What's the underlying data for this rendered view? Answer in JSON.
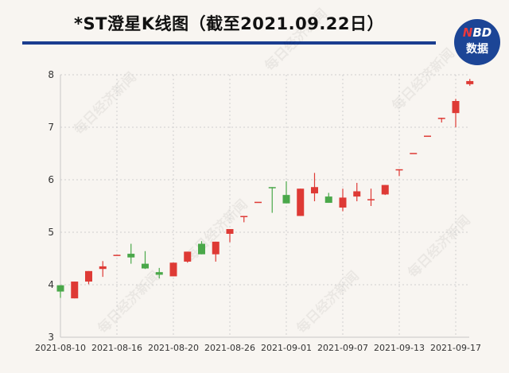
{
  "header": {
    "title": "*ST澄星K线图（截至2021.09.22日）",
    "logo_line1_accent": "N",
    "logo_line1": "BD",
    "logo_line2": "数据",
    "watermark": "每日经济新闻"
  },
  "colors": {
    "up": "#de3a35",
    "down": "#4aa84a",
    "title_rule": "#1a3d8f",
    "logo_bg": "#1c4596"
  },
  "chart_data": {
    "type": "candlestick",
    "title": "*ST澄星K线图（截至2021.09.22日）",
    "ylim": [
      3,
      8
    ],
    "yticks": [
      "3",
      "4",
      "5",
      "6",
      "7",
      "8"
    ],
    "grid": true,
    "xtick_labels": [
      "2021-08-10",
      "2021-08-16",
      "2021-08-20",
      "2021-08-26",
      "2021-09-01",
      "2021-09-07",
      "2021-09-13",
      "2021-09-17"
    ],
    "dates": [
      "2021-08-10",
      "2021-08-11",
      "2021-08-12",
      "2021-08-13",
      "2021-08-16",
      "2021-08-17",
      "2021-08-18",
      "2021-08-19",
      "2021-08-20",
      "2021-08-23",
      "2021-08-24",
      "2021-08-25",
      "2021-08-26",
      "2021-08-27",
      "2021-08-30",
      "2021-08-31",
      "2021-09-01",
      "2021-09-02",
      "2021-09-03",
      "2021-09-06",
      "2021-09-07",
      "2021-09-08",
      "2021-09-09",
      "2021-09-10",
      "2021-09-13",
      "2021-09-14",
      "2021-09-15",
      "2021-09-16",
      "2021-09-17",
      "2021-09-22"
    ],
    "ohlc": [
      [
        3.99,
        3.99,
        3.75,
        3.87
      ],
      [
        3.74,
        4.06,
        3.74,
        4.06
      ],
      [
        4.06,
        4.26,
        4.01,
        4.26
      ],
      [
        4.3,
        4.45,
        4.15,
        4.35
      ],
      [
        4.57,
        4.57,
        4.57,
        4.57
      ],
      [
        4.59,
        4.78,
        4.4,
        4.52
      ],
      [
        4.4,
        4.64,
        4.3,
        4.31
      ],
      [
        4.24,
        4.32,
        4.12,
        4.19
      ],
      [
        4.16,
        4.42,
        4.16,
        4.42
      ],
      [
        4.44,
        4.63,
        4.42,
        4.63
      ],
      [
        4.78,
        4.83,
        4.58,
        4.58
      ],
      [
        4.58,
        4.82,
        4.44,
        4.82
      ],
      [
        4.97,
        5.06,
        4.81,
        5.06
      ],
      [
        5.31,
        5.31,
        5.19,
        5.31
      ],
      [
        5.58,
        5.58,
        5.58,
        5.58
      ],
      [
        5.86,
        5.86,
        5.37,
        5.85
      ],
      [
        5.71,
        5.97,
        5.55,
        5.55
      ],
      [
        5.31,
        5.83,
        5.31,
        5.83
      ],
      [
        5.74,
        6.13,
        5.59,
        5.86
      ],
      [
        5.68,
        5.75,
        5.56,
        5.56
      ],
      [
        5.47,
        5.83,
        5.4,
        5.66
      ],
      [
        5.68,
        5.94,
        5.59,
        5.78
      ],
      [
        5.62,
        5.83,
        5.5,
        5.63
      ],
      [
        5.72,
        5.9,
        5.71,
        5.9
      ],
      [
        6.2,
        6.2,
        6.07,
        6.2
      ],
      [
        6.51,
        6.51,
        6.51,
        6.51
      ],
      [
        6.84,
        6.84,
        6.84,
        6.84
      ],
      [
        7.18,
        7.18,
        7.09,
        7.18
      ],
      [
        7.27,
        7.54,
        7.0,
        7.5
      ],
      [
        7.82,
        7.92,
        7.79,
        7.88
      ]
    ]
  }
}
